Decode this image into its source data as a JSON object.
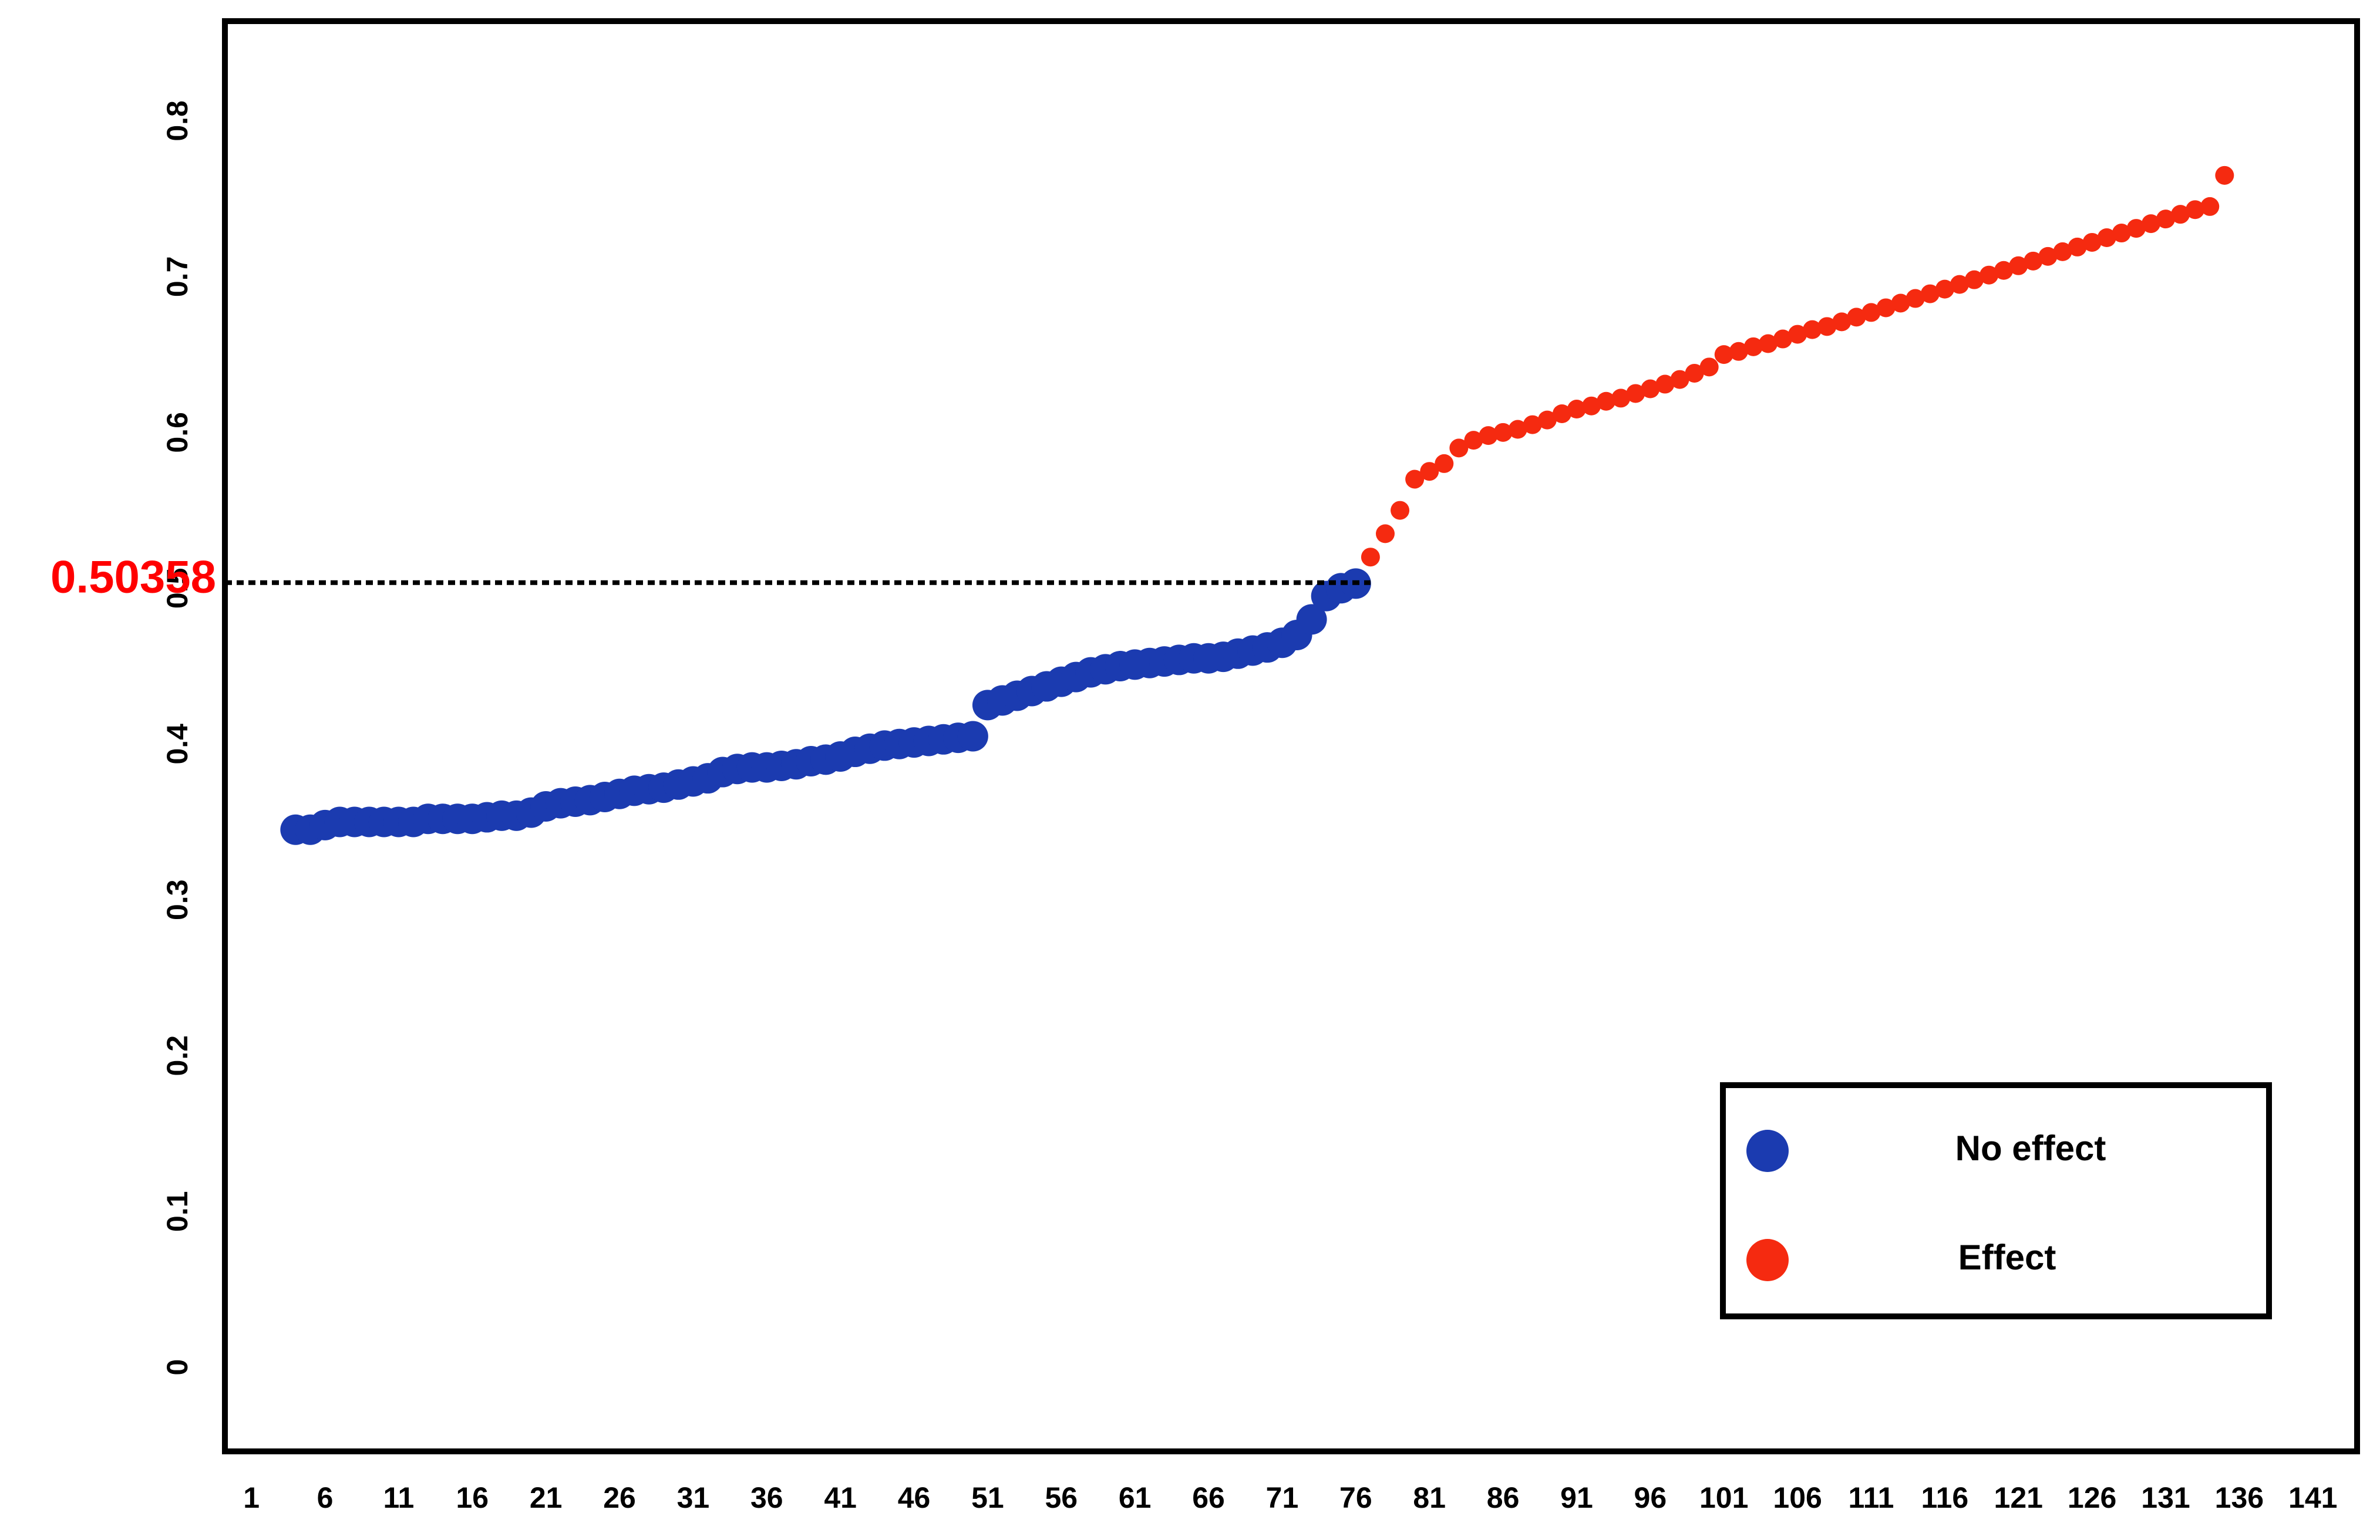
{
  "chart_data": {
    "type": "scatter",
    "threshold": 0.50358,
    "threshold_color": "#ff0000",
    "legend": "lower right",
    "grid": false,
    "xlim": [
      -0.8,
      144
    ],
    "ylim": [
      -0.054,
      0.864
    ],
    "xticks": [
      1,
      6,
      11,
      16,
      21,
      26,
      31,
      36,
      41,
      46,
      51,
      56,
      61,
      66,
      71,
      76,
      81,
      86,
      91,
      96,
      101,
      106,
      111,
      116,
      121,
      126,
      131,
      136,
      141
    ],
    "yticks": [
      0,
      0.1,
      0.2,
      0.3,
      0.4,
      0.5,
      0.6,
      0.7,
      0.8
    ],
    "series": [
      {
        "name": "No effect",
        "color": "#1b3bb0",
        "x": [
          4,
          5,
          6,
          7,
          8,
          9,
          10,
          11,
          12,
          13,
          14,
          15,
          16,
          17,
          18,
          19,
          20,
          21,
          22,
          23,
          24,
          25,
          26,
          27,
          28,
          29,
          30,
          31,
          32,
          33,
          34,
          35,
          36,
          37,
          38,
          39,
          40,
          41,
          42,
          43,
          44,
          45,
          46,
          47,
          48,
          49,
          50,
          51,
          52,
          53,
          54,
          55,
          56,
          57,
          58,
          59,
          60,
          61,
          62,
          63,
          64,
          65,
          66,
          67,
          68,
          69,
          70,
          71,
          72,
          73,
          74,
          75,
          76
        ],
        "values": [
          0.345,
          0.345,
          0.348,
          0.35,
          0.35,
          0.35,
          0.35,
          0.35,
          0.35,
          0.352,
          0.352,
          0.352,
          0.352,
          0.353,
          0.354,
          0.354,
          0.356,
          0.36,
          0.362,
          0.363,
          0.364,
          0.366,
          0.368,
          0.37,
          0.371,
          0.372,
          0.374,
          0.376,
          0.378,
          0.382,
          0.384,
          0.385,
          0.385,
          0.386,
          0.387,
          0.389,
          0.39,
          0.392,
          0.395,
          0.397,
          0.399,
          0.4,
          0.401,
          0.402,
          0.403,
          0.404,
          0.405,
          0.425,
          0.428,
          0.431,
          0.434,
          0.437,
          0.44,
          0.443,
          0.446,
          0.448,
          0.45,
          0.451,
          0.452,
          0.453,
          0.454,
          0.455,
          0.455,
          0.456,
          0.458,
          0.46,
          0.462,
          0.465,
          0.47,
          0.48,
          0.495,
          0.5,
          0.503
        ]
      },
      {
        "name": "Effect",
        "color": "#f52a10",
        "x": [
          77,
          78,
          79,
          80,
          81,
          82,
          83,
          84,
          85,
          86,
          87,
          88,
          89,
          90,
          91,
          92,
          93,
          94,
          95,
          96,
          97,
          98,
          99,
          100,
          101,
          102,
          103,
          104,
          105,
          106,
          107,
          108,
          109,
          110,
          111,
          112,
          113,
          114,
          115,
          116,
          117,
          118,
          119,
          120,
          121,
          122,
          123,
          124,
          125,
          126,
          127,
          128,
          129,
          130,
          131,
          132,
          133,
          134,
          135
        ],
        "values": [
          0.52,
          0.535,
          0.55,
          0.57,
          0.575,
          0.58,
          0.59,
          0.595,
          0.598,
          0.6,
          0.602,
          0.605,
          0.608,
          0.612,
          0.615,
          0.617,
          0.62,
          0.622,
          0.625,
          0.628,
          0.631,
          0.634,
          0.638,
          0.642,
          0.65,
          0.652,
          0.655,
          0.657,
          0.66,
          0.663,
          0.666,
          0.668,
          0.671,
          0.674,
          0.677,
          0.68,
          0.683,
          0.686,
          0.689,
          0.692,
          0.695,
          0.698,
          0.701,
          0.704,
          0.707,
          0.71,
          0.713,
          0.716,
          0.719,
          0.722,
          0.725,
          0.728,
          0.731,
          0.734,
          0.737,
          0.74,
          0.743,
          0.745,
          0.765
        ]
      }
    ]
  }
}
